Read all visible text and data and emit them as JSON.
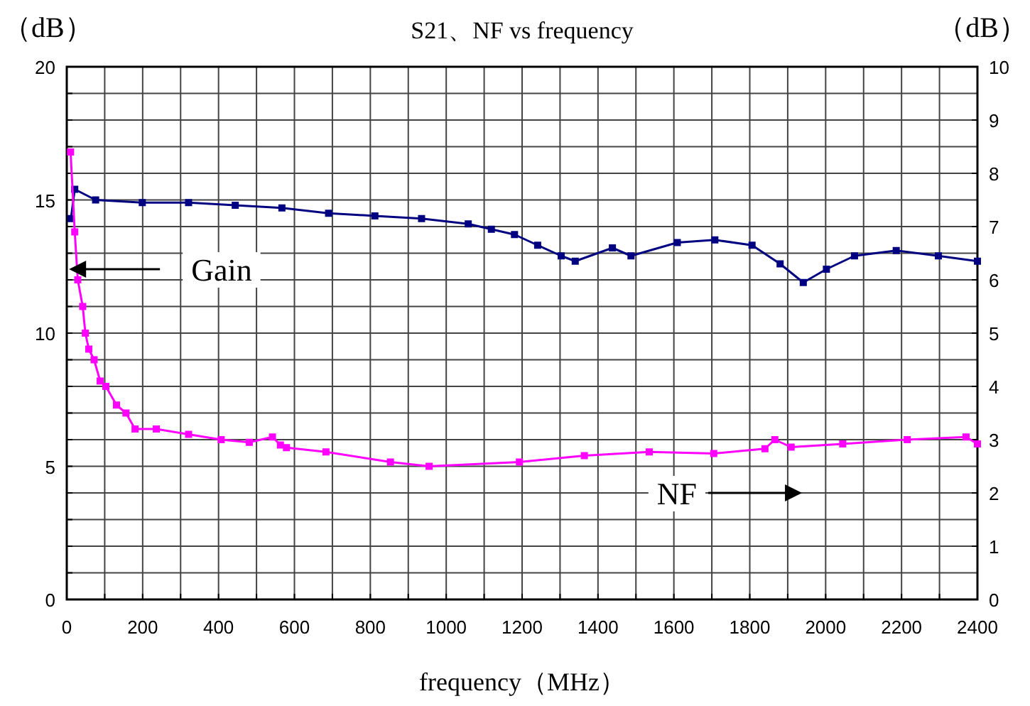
{
  "chart_data": {
    "type": "line",
    "title": "S21、NF vs frequency",
    "xlabel": "frequency（MHz）",
    "ylabel": "（dB）",
    "y2label": "（dB）",
    "xlim": [
      0,
      2400
    ],
    "xticks": [
      0,
      {
        "value": 100,
        "label": null
      },
      200,
      {
        "value": 300,
        "label": null
      },
      400,
      {
        "value": 500,
        "label": null
      },
      600,
      {
        "value": 700,
        "label": null
      },
      800,
      {
        "value": 900,
        "label": null
      },
      1000,
      {
        "value": 1100,
        "label": null
      },
      1200,
      {
        "value": 1300,
        "label": null
      },
      1400,
      {
        "value": 1500,
        "label": null
      },
      1600,
      {
        "value": 1700,
        "label": null
      },
      1800,
      {
        "value": 1900,
        "label": null
      },
      2000,
      {
        "value": 2100,
        "label": null
      },
      2200,
      {
        "value": 2300,
        "label": null
      },
      2400
    ],
    "ylim": [
      0,
      20
    ],
    "yticks": [
      0,
      {
        "value": 1,
        "label": null
      },
      {
        "value": 2,
        "label": null
      },
      {
        "value": 3,
        "label": null
      },
      {
        "value": 4,
        "label": null
      },
      5,
      {
        "value": 6,
        "label": null
      },
      {
        "value": 7,
        "label": null
      },
      {
        "value": 8,
        "label": null
      },
      {
        "value": 9,
        "label": null
      },
      10,
      {
        "value": 11,
        "label": null
      },
      {
        "value": 12,
        "label": null
      },
      {
        "value": 13,
        "label": null
      },
      {
        "value": 14,
        "label": null
      },
      15,
      {
        "value": 16,
        "label": null
      },
      {
        "value": 17,
        "label": null
      },
      {
        "value": 18,
        "label": null
      },
      {
        "value": 19,
        "label": null
      },
      20
    ],
    "y2lim": [
      0,
      10
    ],
    "y2ticks": [
      0,
      1,
      2,
      3,
      4,
      5,
      6,
      7,
      8,
      9,
      10
    ],
    "grid": true,
    "marker": "square",
    "line_style": "solid",
    "series": [
      {
        "color": "#000080",
        "x": [
          11,
          21,
          76,
          199,
          321,
          444,
          567,
          690,
          812,
          935,
          1058,
          1119,
          1180,
          1241,
          1303,
          1340,
          1438,
          1487,
          1609,
          1708,
          1806,
          1880,
          1941,
          2002,
          2076,
          2186,
          2297,
          2400
        ],
        "values": [
          14.3,
          15.4,
          15.0,
          14.9,
          14.9,
          14.8,
          14.7,
          14.5,
          14.4,
          14.3,
          14.1,
          13.9,
          13.7,
          13.3,
          12.9,
          12.7,
          13.2,
          12.9,
          13.4,
          13.5,
          13.3,
          12.6,
          11.9,
          12.4,
          12.9,
          13.1,
          12.9,
          12.7
        ]
      },
      {
        "color": "#ff00ff",
        "axis": "y2",
        "x": [
          10,
          21,
          29,
          42,
          49,
          58,
          72,
          88,
          103,
          131,
          156,
          180,
          236,
          321,
          407,
          481,
          542,
          563,
          579,
          683,
          853,
          955,
          1193,
          1364,
          1535,
          1705,
          1840,
          1866,
          1909,
          2045,
          2215,
          2370,
          2400
        ],
        "values": [
          8.4,
          6.9,
          6.0,
          5.5,
          5.0,
          4.7,
          4.5,
          4.1,
          4.0,
          3.65,
          3.5,
          3.2,
          3.2,
          3.1,
          3.0,
          2.95,
          3.05,
          2.9,
          2.85,
          2.77,
          2.58,
          2.5,
          2.58,
          2.7,
          2.77,
          2.74,
          2.83,
          3.0,
          2.86,
          2.92,
          3.0,
          3.05,
          2.92
        ]
      }
    ],
    "annotations": [
      "Gain",
      "NF"
    ]
  }
}
